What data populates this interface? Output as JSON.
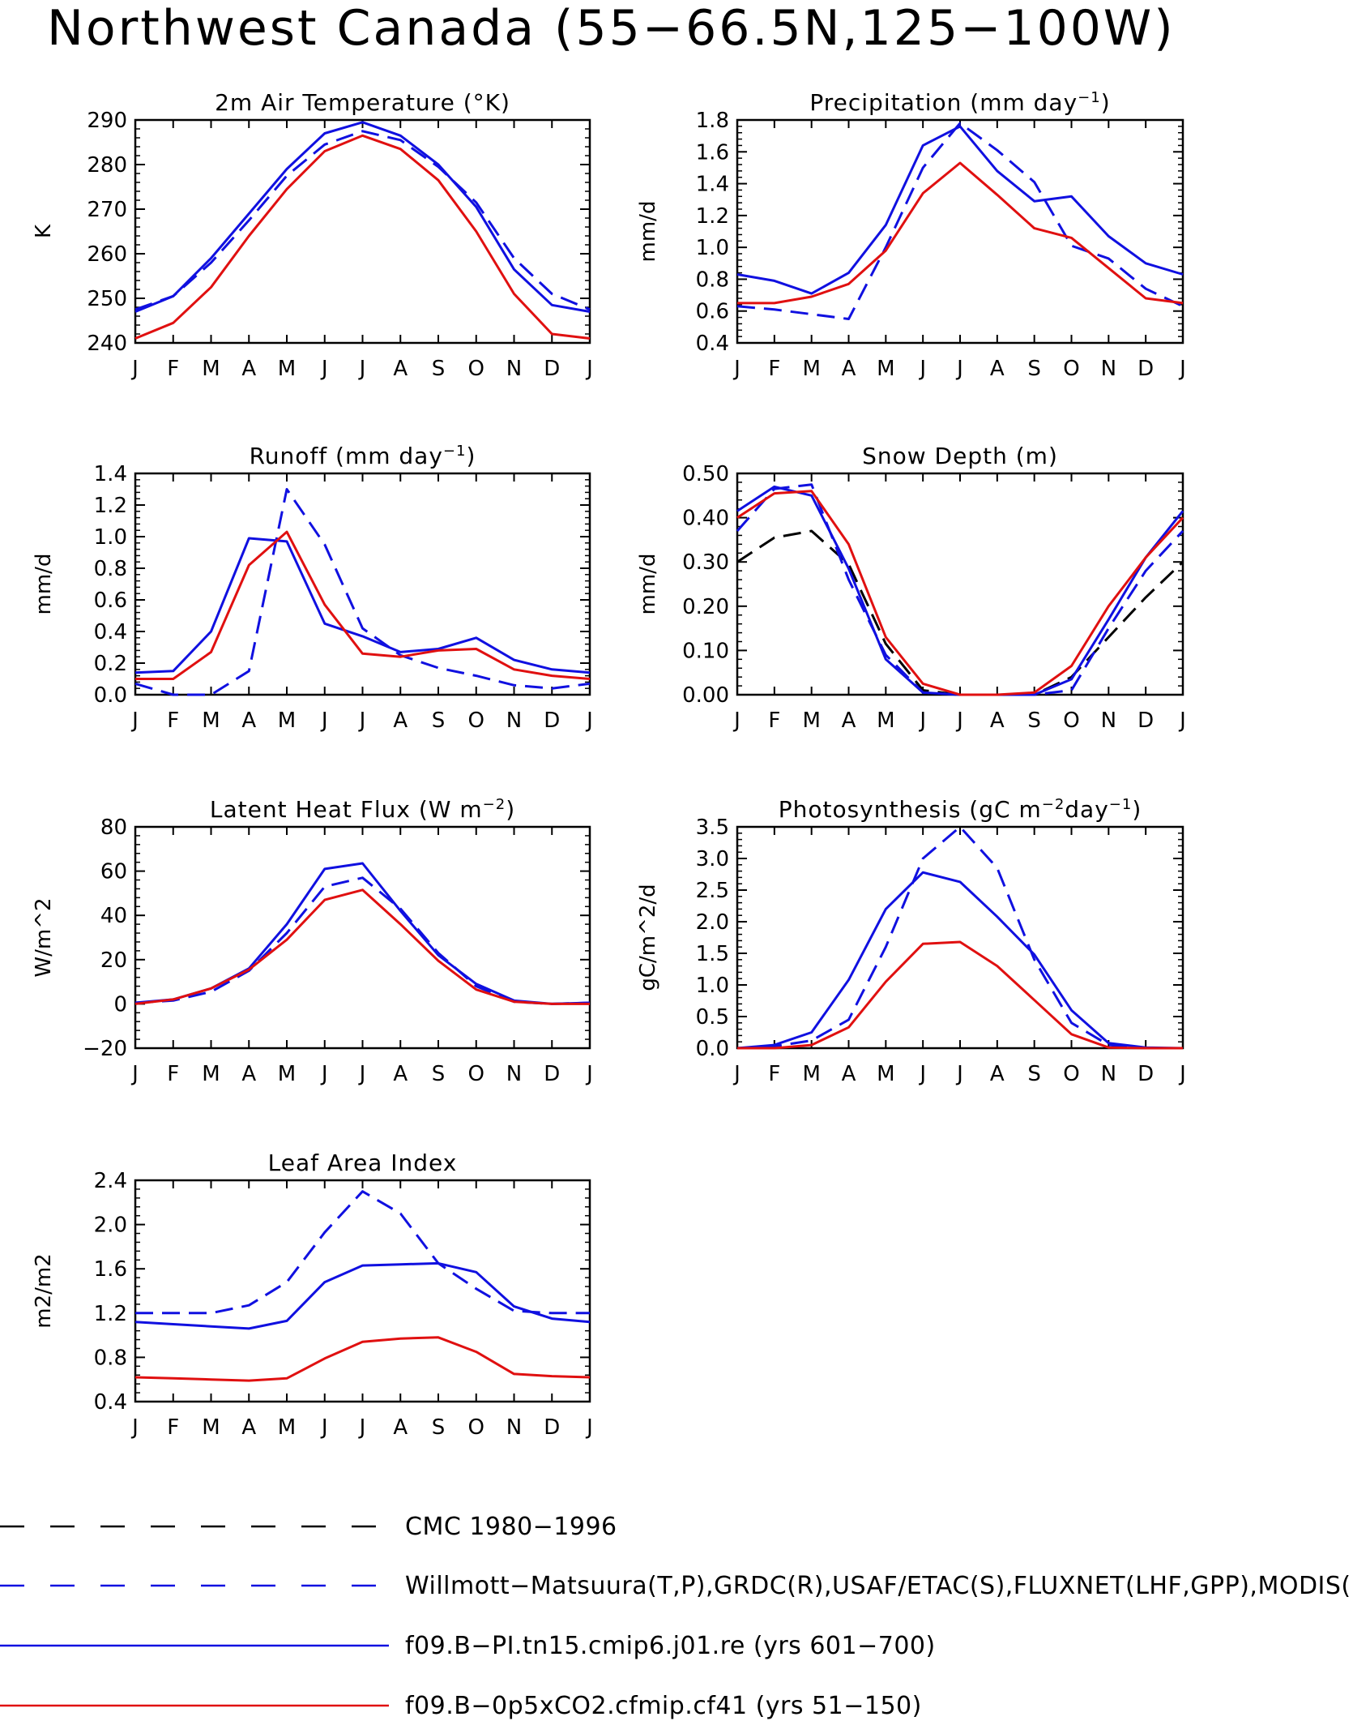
{
  "page_title": "Northwest Canada (55−66.5N,125−100W)",
  "months": [
    "J",
    "F",
    "M",
    "A",
    "M",
    "J",
    "J",
    "A",
    "S",
    "O",
    "N",
    "D",
    "J"
  ],
  "legend": [
    {
      "label": "CMC 1980−1996",
      "color": "#000000",
      "style": "dashed"
    },
    {
      "label": "Willmott−Matsuura(T,P),GRDC(R),USAF/ETAC(S),FLUXNET(LHF,GPP),MODIS(L",
      "color": "#1010e0",
      "style": "dashed"
    },
    {
      "label": "f09.B−PI.tn15.cmip6.j01.re (yrs 601−700)",
      "color": "#1010e0",
      "style": "solid"
    },
    {
      "label": "f09.B−0p5xCO2.cfmip.cf41 (yrs 51−150)",
      "color": "#e01010",
      "style": "solid"
    }
  ],
  "chart_data": [
    {
      "type": "line",
      "title": "2m Air Temperature (°K)",
      "ylabel": "K",
      "ylim": [
        240,
        290
      ],
      "yticks": [
        240,
        250,
        260,
        270,
        280,
        290
      ],
      "ytick_labels": [
        "240",
        "250",
        "260",
        "270",
        "280",
        "290"
      ],
      "series": [
        {
          "style": "dashed",
          "color": "#1010e0",
          "values": [
            247.5,
            250.5,
            258,
            267.5,
            277.5,
            284.5,
            287.5,
            285.5,
            279.5,
            271.5,
            259,
            251,
            247.5
          ]
        },
        {
          "style": "solid",
          "color": "#1010e0",
          "values": [
            247,
            250.5,
            259,
            269,
            279,
            287,
            289.5,
            286.5,
            280,
            270.5,
            256.5,
            248.5,
            247
          ]
        },
        {
          "style": "solid",
          "color": "#e01010",
          "values": [
            241,
            244.5,
            252.5,
            264,
            274.5,
            283,
            286.5,
            283.5,
            276.5,
            265,
            251,
            242,
            241
          ]
        }
      ]
    },
    {
      "type": "line",
      "title": "Precipitation (mm day",
      "title_sup": "−1",
      "title_end": ")",
      "ylabel": "mm/d",
      "ylim": [
        0.4,
        1.8
      ],
      "yticks": [
        0.4,
        0.6,
        0.8,
        1.0,
        1.2,
        1.4,
        1.6,
        1.8
      ],
      "ytick_labels": [
        "0.4",
        "0.6",
        "0.8",
        "1.0",
        "1.2",
        "1.4",
        "1.6",
        "1.8"
      ],
      "series": [
        {
          "style": "dashed",
          "color": "#1010e0",
          "values": [
            0.63,
            0.61,
            0.58,
            0.55,
            1.0,
            1.5,
            1.78,
            1.61,
            1.41,
            1.01,
            0.93,
            0.74,
            0.63
          ]
        },
        {
          "style": "solid",
          "color": "#1010e0",
          "values": [
            0.83,
            0.79,
            0.71,
            0.84,
            1.14,
            1.64,
            1.76,
            1.48,
            1.29,
            1.32,
            1.07,
            0.9,
            0.83
          ]
        },
        {
          "style": "solid",
          "color": "#e01010",
          "values": [
            0.65,
            0.65,
            0.69,
            0.77,
            0.98,
            1.34,
            1.53,
            1.33,
            1.12,
            1.06,
            0.87,
            0.68,
            0.65
          ]
        }
      ]
    },
    {
      "type": "line",
      "title": "Runoff (mm day",
      "title_sup": "−1",
      "title_end": ")",
      "ylabel": "mm/d",
      "ylim": [
        0.0,
        1.4
      ],
      "yticks": [
        0.0,
        0.2,
        0.4,
        0.6,
        0.8,
        1.0,
        1.2,
        1.4
      ],
      "ytick_labels": [
        "0.0",
        "0.2",
        "0.4",
        "0.6",
        "0.8",
        "1.0",
        "1.2",
        "1.4"
      ],
      "series": [
        {
          "style": "dashed",
          "color": "#1010e0",
          "values": [
            0.07,
            0.0,
            0.0,
            0.15,
            1.3,
            0.95,
            0.42,
            0.25,
            0.17,
            0.12,
            0.06,
            0.04,
            0.07
          ]
        },
        {
          "style": "solid",
          "color": "#1010e0",
          "values": [
            0.14,
            0.15,
            0.4,
            0.99,
            0.97,
            0.45,
            0.37,
            0.27,
            0.29,
            0.36,
            0.22,
            0.16,
            0.14
          ]
        },
        {
          "style": "solid",
          "color": "#e01010",
          "values": [
            0.1,
            0.1,
            0.27,
            0.82,
            1.03,
            0.57,
            0.26,
            0.24,
            0.28,
            0.29,
            0.16,
            0.12,
            0.1
          ]
        }
      ]
    },
    {
      "type": "line",
      "title": "Snow Depth (m)",
      "ylabel": "mm/d",
      "ylim": [
        0.0,
        0.5
      ],
      "yticks": [
        0.0,
        0.1,
        0.2,
        0.3,
        0.4,
        0.5
      ],
      "ytick_labels": [
        "0.00",
        "0.10",
        "0.20",
        "0.30",
        "0.40",
        "0.50"
      ],
      "series": [
        {
          "style": "dashed",
          "color": "#000000",
          "values": [
            0.3,
            0.355,
            0.37,
            0.295,
            0.115,
            0.01,
            0.0,
            0.0,
            0.0,
            0.04,
            0.13,
            0.22,
            0.3
          ]
        },
        {
          "style": "dashed",
          "color": "#1010e0",
          "values": [
            0.37,
            0.465,
            0.475,
            0.26,
            0.09,
            0.005,
            0.0,
            0.0,
            0.0,
            0.01,
            0.15,
            0.28,
            0.37
          ]
        },
        {
          "style": "solid",
          "color": "#1010e0",
          "values": [
            0.415,
            0.47,
            0.45,
            0.285,
            0.08,
            0.005,
            0.0,
            0.0,
            0.0,
            0.035,
            0.17,
            0.31,
            0.415
          ]
        },
        {
          "style": "solid",
          "color": "#e01010",
          "values": [
            0.4,
            0.455,
            0.46,
            0.34,
            0.13,
            0.025,
            0.0,
            0.0,
            0.005,
            0.065,
            0.2,
            0.31,
            0.4
          ]
        }
      ]
    },
    {
      "type": "line",
      "title": "Latent Heat Flux (W m",
      "title_sup": "−2",
      "title_end": ")",
      "ylabel": "W/m^2",
      "ylim": [
        -20,
        80
      ],
      "yticks": [
        -20,
        0,
        20,
        40,
        60,
        80
      ],
      "ytick_labels": [
        "−20",
        "0",
        "20",
        "40",
        "60",
        "80"
      ],
      "series": [
        {
          "style": "dashed",
          "color": "#1010e0",
          "values": [
            0.5,
            1.5,
            5.5,
            15,
            32,
            53,
            57,
            43,
            23,
            8,
            1,
            0,
            0.5
          ]
        },
        {
          "style": "solid",
          "color": "#1010e0",
          "values": [
            0.5,
            2,
            7,
            16,
            36,
            61,
            63.5,
            42,
            22,
            9,
            1.5,
            0,
            0.5
          ]
        },
        {
          "style": "solid",
          "color": "#e01010",
          "values": [
            0,
            2,
            7,
            15.5,
            29,
            47,
            51.5,
            36,
            19.5,
            6.5,
            1,
            0,
            0
          ]
        }
      ]
    },
    {
      "type": "line",
      "title": "Photosynthesis (gC m",
      "title_sup": "−2",
      "title_mid": "day",
      "title_sup2": "−1",
      "title_end": ")",
      "ylabel": "gC/m^2/d",
      "ylim": [
        0.0,
        3.5
      ],
      "yticks": [
        0.0,
        0.5,
        1.0,
        1.5,
        2.0,
        2.5,
        3.0,
        3.5
      ],
      "ytick_labels": [
        "0.0",
        "0.5",
        "1.0",
        "1.5",
        "2.0",
        "2.5",
        "3.0",
        "3.5"
      ],
      "series": [
        {
          "style": "dashed",
          "color": "#1010e0",
          "values": [
            0.0,
            0.03,
            0.12,
            0.45,
            1.6,
            3.0,
            3.5,
            2.85,
            1.4,
            0.4,
            0.05,
            0.0,
            0.0
          ]
        },
        {
          "style": "solid",
          "color": "#1010e0",
          "values": [
            0.0,
            0.05,
            0.25,
            1.08,
            2.2,
            2.78,
            2.63,
            2.08,
            1.48,
            0.6,
            0.08,
            0.01,
            0.0
          ]
        },
        {
          "style": "solid",
          "color": "#e01010",
          "values": [
            0.0,
            0.0,
            0.05,
            0.33,
            1.05,
            1.65,
            1.68,
            1.3,
            0.76,
            0.22,
            0.01,
            0.0,
            0.0
          ]
        }
      ]
    },
    {
      "type": "line",
      "title": "Leaf Area Index",
      "ylabel": "m2/m2",
      "ylim": [
        0.4,
        2.4
      ],
      "yticks": [
        0.4,
        0.8,
        1.2,
        1.6,
        2.0,
        2.4
      ],
      "ytick_labels": [
        "0.4",
        "0.8",
        "1.2",
        "1.6",
        "2.0",
        "2.4"
      ],
      "series": [
        {
          "style": "dashed",
          "color": "#1010e0",
          "values": [
            1.2,
            1.2,
            1.2,
            1.27,
            1.48,
            1.93,
            2.3,
            2.1,
            1.65,
            1.42,
            1.22,
            1.2,
            1.2
          ]
        },
        {
          "style": "solid",
          "color": "#1010e0",
          "values": [
            1.12,
            1.1,
            1.08,
            1.06,
            1.13,
            1.48,
            1.63,
            1.64,
            1.65,
            1.57,
            1.26,
            1.15,
            1.12
          ]
        },
        {
          "style": "solid",
          "color": "#e01010",
          "values": [
            0.62,
            0.61,
            0.6,
            0.59,
            0.61,
            0.79,
            0.94,
            0.97,
            0.98,
            0.85,
            0.65,
            0.63,
            0.62
          ]
        }
      ]
    }
  ]
}
